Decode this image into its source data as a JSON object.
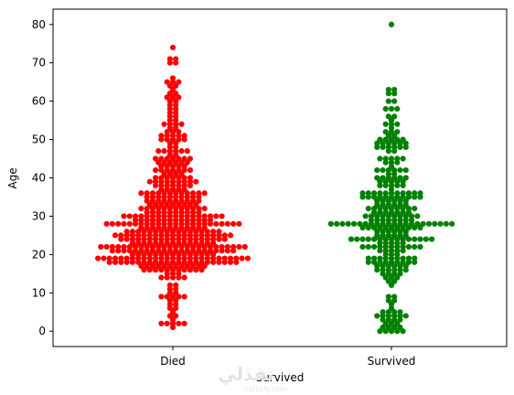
{
  "chart_data": {
    "type": "scatter",
    "xlabel": "Survived",
    "ylabel": "Age",
    "categories": [
      "Died",
      "Survived"
    ],
    "ylim": [
      -4,
      84
    ],
    "yticks": [
      0,
      10,
      20,
      30,
      40,
      50,
      60,
      70,
      80
    ],
    "grid": false,
    "series": [
      {
        "category": "Died",
        "color": "#ff0000",
        "age_counts": [
          [
            1,
            1
          ],
          [
            2,
            5
          ],
          [
            3,
            1
          ],
          [
            4,
            2
          ],
          [
            5,
            1
          ],
          [
            6,
            2
          ],
          [
            7,
            2
          ],
          [
            8,
            2
          ],
          [
            9,
            5
          ],
          [
            10,
            2
          ],
          [
            11,
            2
          ],
          [
            12,
            2
          ],
          [
            14,
            5
          ],
          [
            15,
            3
          ],
          [
            16,
            11
          ],
          [
            17,
            12
          ],
          [
            18,
            23
          ],
          [
            19,
            27
          ],
          [
            20,
            15
          ],
          [
            21,
            22
          ],
          [
            22,
            26
          ],
          [
            23,
            15
          ],
          [
            24,
            19
          ],
          [
            25,
            21
          ],
          [
            26,
            17
          ],
          [
            27,
            12
          ],
          [
            28,
            24
          ],
          [
            29,
            14
          ],
          [
            30,
            18
          ],
          [
            31,
            10
          ],
          [
            32,
            12
          ],
          [
            33,
            9
          ],
          [
            34,
            10
          ],
          [
            35,
            10
          ],
          [
            36,
            12
          ],
          [
            37,
            5
          ],
          [
            38,
            7
          ],
          [
            39,
            9
          ],
          [
            40,
            7
          ],
          [
            41,
            4
          ],
          [
            42,
            7
          ],
          [
            43,
            5
          ],
          [
            44,
            6
          ],
          [
            45,
            7
          ],
          [
            46,
            2
          ],
          [
            47,
            6
          ],
          [
            48,
            2
          ],
          [
            49,
            2
          ],
          [
            50,
            5
          ],
          [
            51,
            5
          ],
          [
            52,
            3
          ],
          [
            53,
            2
          ],
          [
            54,
            4
          ],
          [
            55,
            2
          ],
          [
            56,
            2
          ],
          [
            57,
            2
          ],
          [
            58,
            2
          ],
          [
            59,
            2
          ],
          [
            60,
            2
          ],
          [
            61,
            3
          ],
          [
            62,
            2
          ],
          [
            63,
            1
          ],
          [
            64,
            2
          ],
          [
            65,
            3
          ],
          [
            66,
            1
          ],
          [
            70,
            2
          ],
          [
            71,
            2
          ],
          [
            74,
            1
          ]
        ]
      },
      {
        "category": "Survived",
        "color": "#008000",
        "age_counts": [
          [
            0,
            5
          ],
          [
            1,
            4
          ],
          [
            2,
            3
          ],
          [
            3,
            4
          ],
          [
            4,
            6
          ],
          [
            5,
            4
          ],
          [
            6,
            1
          ],
          [
            7,
            1
          ],
          [
            8,
            2
          ],
          [
            9,
            2
          ],
          [
            12,
            1
          ],
          [
            13,
            2
          ],
          [
            14,
            3
          ],
          [
            15,
            4
          ],
          [
            16,
            6
          ],
          [
            17,
            6
          ],
          [
            18,
            9
          ],
          [
            19,
            9
          ],
          [
            20,
            3
          ],
          [
            21,
            5
          ],
          [
            22,
            11
          ],
          [
            23,
            5
          ],
          [
            24,
            15
          ],
          [
            25,
            6
          ],
          [
            26,
            6
          ],
          [
            27,
            11
          ],
          [
            28,
            22
          ],
          [
            29,
            8
          ],
          [
            30,
            10
          ],
          [
            31,
            7
          ],
          [
            32,
            9
          ],
          [
            33,
            6
          ],
          [
            34,
            6
          ],
          [
            35,
            11
          ],
          [
            36,
            11
          ],
          [
            37,
            1
          ],
          [
            38,
            5
          ],
          [
            39,
            5
          ],
          [
            40,
            6
          ],
          [
            41,
            2
          ],
          [
            42,
            6
          ],
          [
            43,
            1
          ],
          [
            44,
            3
          ],
          [
            45,
            5
          ],
          [
            47,
            2
          ],
          [
            48,
            6
          ],
          [
            49,
            6
          ],
          [
            50,
            5
          ],
          [
            51,
            2
          ],
          [
            52,
            3
          ],
          [
            53,
            1
          ],
          [
            54,
            3
          ],
          [
            55,
            1
          ],
          [
            56,
            2
          ],
          [
            58,
            3
          ],
          [
            60,
            2
          ],
          [
            62,
            2
          ],
          [
            63,
            2
          ],
          [
            80,
            1
          ]
        ]
      }
    ]
  },
  "watermark": {
    "main": "نفذلي",
    "sub": "nafezly.com"
  }
}
